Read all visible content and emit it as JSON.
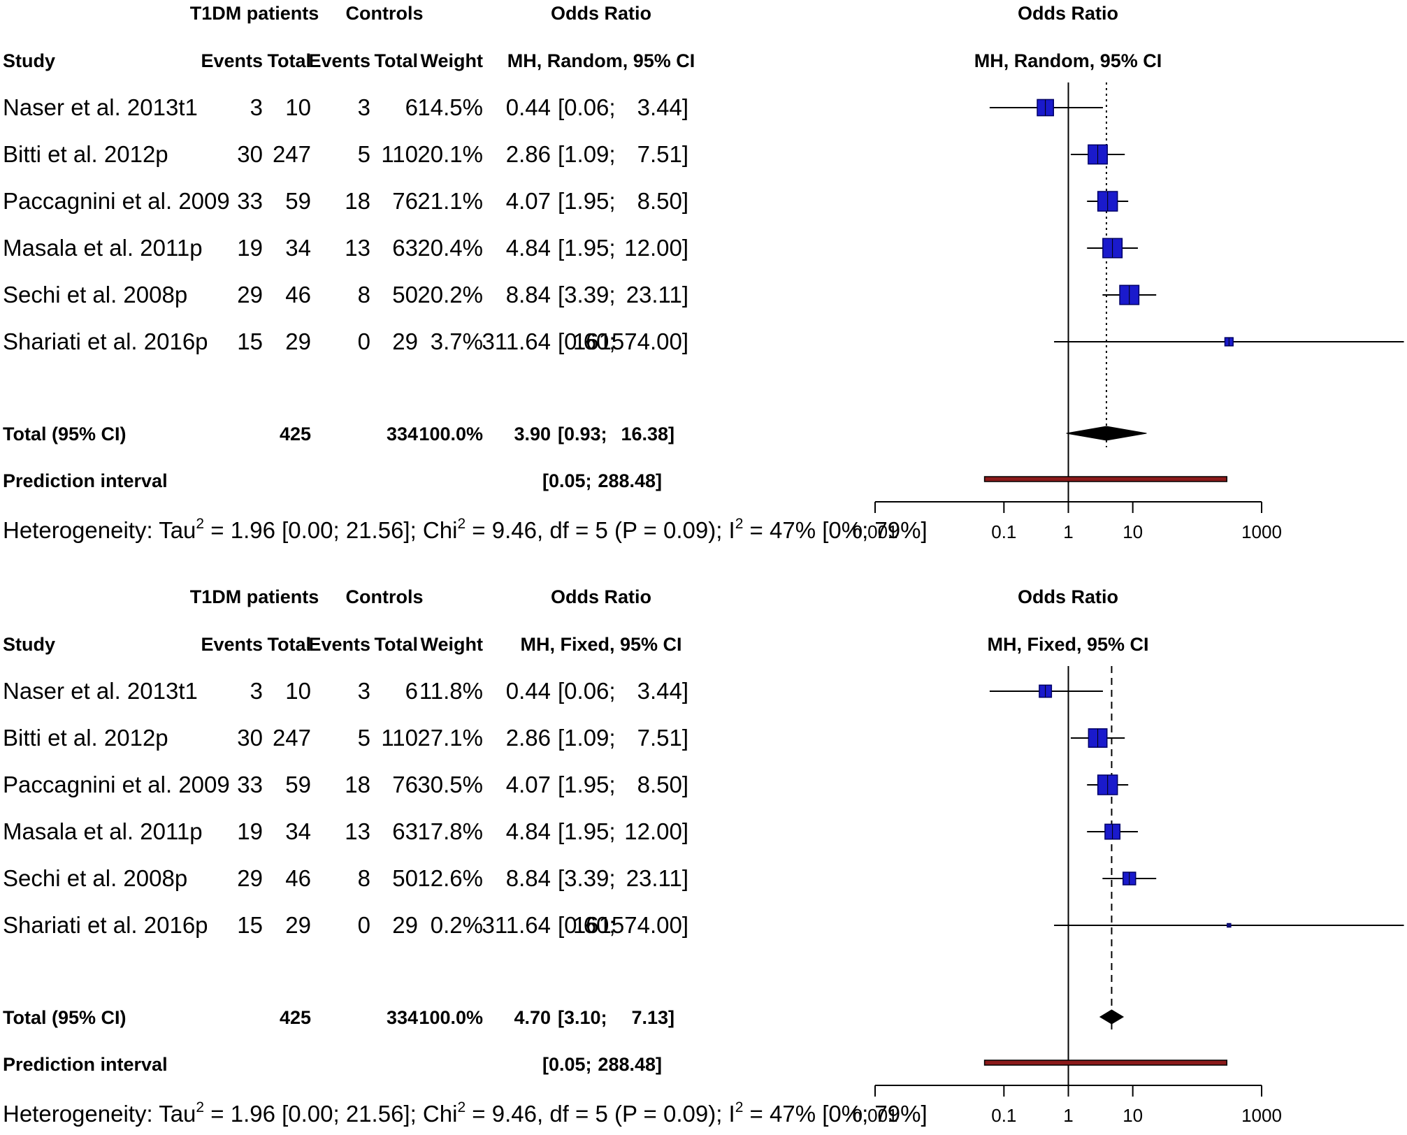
{
  "chart_data": [
    {
      "type": "forest",
      "model": "random",
      "header": {
        "group1": "T1DM patients",
        "group2": "Controls",
        "or_title": "Odds Ratio",
        "study": "Study",
        "events1": "Events",
        "total1": "Total",
        "events2": "Events",
        "total2": "Total",
        "weight": "Weight",
        "method": "MH, Random, 95% CI",
        "plot_title": "Odds Ratio",
        "plot_method": "MH, Random, 95% CI"
      },
      "studies": [
        {
          "name": "Naser et al. 2013t1",
          "e1": "3",
          "n1": "10",
          "e2": "3",
          "n2": "6",
          "weight": "14.5%",
          "or_text": "0.44",
          "ci_text": "[0.06;",
          "ci_hi_text": "3.44]",
          "or": 0.44,
          "lo": 0.06,
          "hi": 3.44,
          "w": 14.5
        },
        {
          "name": "Bitti et al. 2012p",
          "e1": "30",
          "n1": "247",
          "e2": "5",
          "n2": "110",
          "weight": "20.1%",
          "or_text": "2.86",
          "ci_text": "[1.09;",
          "ci_hi_text": "7.51]",
          "or": 2.86,
          "lo": 1.09,
          "hi": 7.51,
          "w": 20.1
        },
        {
          "name": "Paccagnini et al. 2009",
          "e1": "33",
          "n1": "59",
          "e2": "18",
          "n2": "76",
          "weight": "21.1%",
          "or_text": "4.07",
          "ci_text": "[1.95;",
          "ci_hi_text": "8.50]",
          "or": 4.07,
          "lo": 1.95,
          "hi": 8.5,
          "w": 21.1
        },
        {
          "name": "Masala et al. 2011p",
          "e1": "19",
          "n1": "34",
          "e2": "13",
          "n2": "63",
          "weight": "20.4%",
          "or_text": "4.84",
          "ci_text": "[1.95;",
          "ci_hi_text": "12.00]",
          "or": 4.84,
          "lo": 1.95,
          "hi": 12.0,
          "w": 20.4
        },
        {
          "name": "Sechi et al. 2008p",
          "e1": "29",
          "n1": "46",
          "e2": "8",
          "n2": "50",
          "weight": "20.2%",
          "or_text": "8.84",
          "ci_text": "[3.39;",
          "ci_hi_text": "23.11]",
          "or": 8.84,
          "lo": 3.39,
          "hi": 23.11,
          "w": 20.2
        },
        {
          "name": "Shariati et al. 2016p",
          "e1": "15",
          "n1": "29",
          "e2": "0",
          "n2": "29",
          "weight": "3.7%",
          "or_text": "311.64",
          "ci_text": "[0.60;",
          "ci_hi_text": "161574.00]",
          "or": 311.64,
          "lo": 0.6,
          "hi": 161574.0,
          "w": 3.7
        }
      ],
      "total": {
        "label": "Total (95% CI)",
        "n1": "425",
        "n2": "334",
        "weight": "100.0%",
        "or_text": "3.90",
        "ci_text": "[0.93;",
        "ci_hi_text": "16.38]",
        "or": 3.9,
        "lo": 0.93,
        "hi": 16.38
      },
      "prediction": {
        "label": "Prediction interval",
        "ci_text": "[0.05;",
        "ci_hi_text": "288.48]",
        "lo": 0.05,
        "hi": 288.48
      },
      "heterogeneity": {
        "p1": "Heterogeneity: Tau",
        "s1": "2",
        "p2": " = 1.96 [0.00; 21.56]; Chi",
        "s2": "2",
        "p3": " = 9.46, df = 5 (P = 0.09); I",
        "s3": "2",
        "p4": " = 47% [0%; 79%]"
      },
      "axis": {
        "scale": "log",
        "ticks": [
          "0.001",
          "0.1",
          "1",
          "10",
          "1000"
        ],
        "tick_values": [
          0.001,
          0.1,
          1,
          10,
          1000
        ],
        "xlim": [
          0.001,
          1000
        ],
        "ref_line": 1
      }
    },
    {
      "type": "forest",
      "model": "fixed",
      "header": {
        "group1": "T1DM patients",
        "group2": "Controls",
        "or_title": "Odds Ratio",
        "study": "Study",
        "events1": "Events",
        "total1": "Total",
        "events2": "Events",
        "total2": "Total",
        "weight": "Weight",
        "method": "MH, Fixed, 95% CI",
        "plot_title": "Odds Ratio",
        "plot_method": "MH, Fixed, 95% CI"
      },
      "studies": [
        {
          "name": "Naser et al. 2013t1",
          "e1": "3",
          "n1": "10",
          "e2": "3",
          "n2": "6",
          "weight": "11.8%",
          "or_text": "0.44",
          "ci_text": "[0.06;",
          "ci_hi_text": "3.44]",
          "or": 0.44,
          "lo": 0.06,
          "hi": 3.44,
          "w": 11.8
        },
        {
          "name": "Bitti et al. 2012p",
          "e1": "30",
          "n1": "247",
          "e2": "5",
          "n2": "110",
          "weight": "27.1%",
          "or_text": "2.86",
          "ci_text": "[1.09;",
          "ci_hi_text": "7.51]",
          "or": 2.86,
          "lo": 1.09,
          "hi": 7.51,
          "w": 27.1
        },
        {
          "name": "Paccagnini et al. 2009",
          "e1": "33",
          "n1": "59",
          "e2": "18",
          "n2": "76",
          "weight": "30.5%",
          "or_text": "4.07",
          "ci_text": "[1.95;",
          "ci_hi_text": "8.50]",
          "or": 4.07,
          "lo": 1.95,
          "hi": 8.5,
          "w": 30.5
        },
        {
          "name": "Masala et al. 2011p",
          "e1": "19",
          "n1": "34",
          "e2": "13",
          "n2": "63",
          "weight": "17.8%",
          "or_text": "4.84",
          "ci_text": "[1.95;",
          "ci_hi_text": "12.00]",
          "or": 4.84,
          "lo": 1.95,
          "hi": 12.0,
          "w": 17.8
        },
        {
          "name": "Sechi et al. 2008p",
          "e1": "29",
          "n1": "46",
          "e2": "8",
          "n2": "50",
          "weight": "12.6%",
          "or_text": "8.84",
          "ci_text": "[3.39;",
          "ci_hi_text": "23.11]",
          "or": 8.84,
          "lo": 3.39,
          "hi": 23.11,
          "w": 12.6
        },
        {
          "name": "Shariati et al. 2016p",
          "e1": "15",
          "n1": "29",
          "e2": "0",
          "n2": "29",
          "weight": "0.2%",
          "or_text": "311.64",
          "ci_text": "[0.60;",
          "ci_hi_text": "161574.00]",
          "or": 311.64,
          "lo": 0.6,
          "hi": 161574.0,
          "w": 0.2
        }
      ],
      "total": {
        "label": "Total (95% CI)",
        "n1": "425",
        "n2": "334",
        "weight": "100.0%",
        "or_text": "4.70",
        "ci_text": "[3.10;",
        "ci_hi_text": "7.13]",
        "or": 4.7,
        "lo": 3.1,
        "hi": 7.13
      },
      "prediction": {
        "label": "Prediction interval",
        "ci_text": "[0.05;",
        "ci_hi_text": "288.48]",
        "lo": 0.05,
        "hi": 288.48
      },
      "heterogeneity": {
        "p1": "Heterogeneity: Tau",
        "s1": "2",
        "p2": " = 1.96 [0.00; 21.56]; Chi",
        "s2": "2",
        "p3": " = 9.46, df = 5 (P = 0.09); I",
        "s3": "2",
        "p4": " = 47% [0%; 79%]"
      },
      "axis": {
        "scale": "log",
        "ticks": [
          "0.001",
          "0.1",
          "1",
          "10",
          "1000"
        ],
        "tick_values": [
          0.001,
          0.1,
          1,
          10,
          1000
        ],
        "xlim": [
          0.001,
          1000
        ],
        "ref_line": 1
      }
    }
  ],
  "colors": {
    "box_fill": "#1a1acc",
    "box_stroke": "#000066",
    "prediction_fill": "#8b1a1a",
    "line": "#000000"
  }
}
